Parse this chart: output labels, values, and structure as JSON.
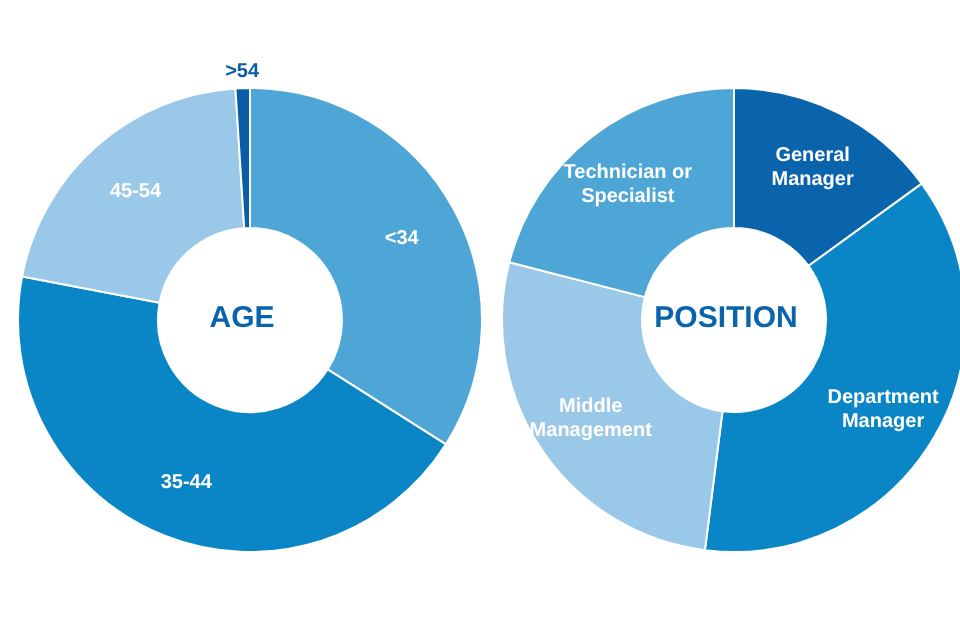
{
  "chart_data": [
    {
      "type": "donut",
      "title": "AGE",
      "categories": [
        "<34",
        "35-44",
        "45-54",
        ">54"
      ],
      "values": [
        34,
        44,
        21,
        1
      ],
      "colors": [
        "#4da6d6",
        "#0a86c6",
        "#9ac8e8",
        "#0a5ca6"
      ]
    },
    {
      "type": "donut",
      "title": "POSITION",
      "categories": [
        "General Manager",
        "Department Manager",
        "Middle Management",
        "Technician or Specialist"
      ],
      "values": [
        15,
        37,
        27,
        21
      ],
      "colors": [
        "#0a64ac",
        "#0a86c6",
        "#9ac8e8",
        "#4da6d6"
      ]
    }
  ]
}
